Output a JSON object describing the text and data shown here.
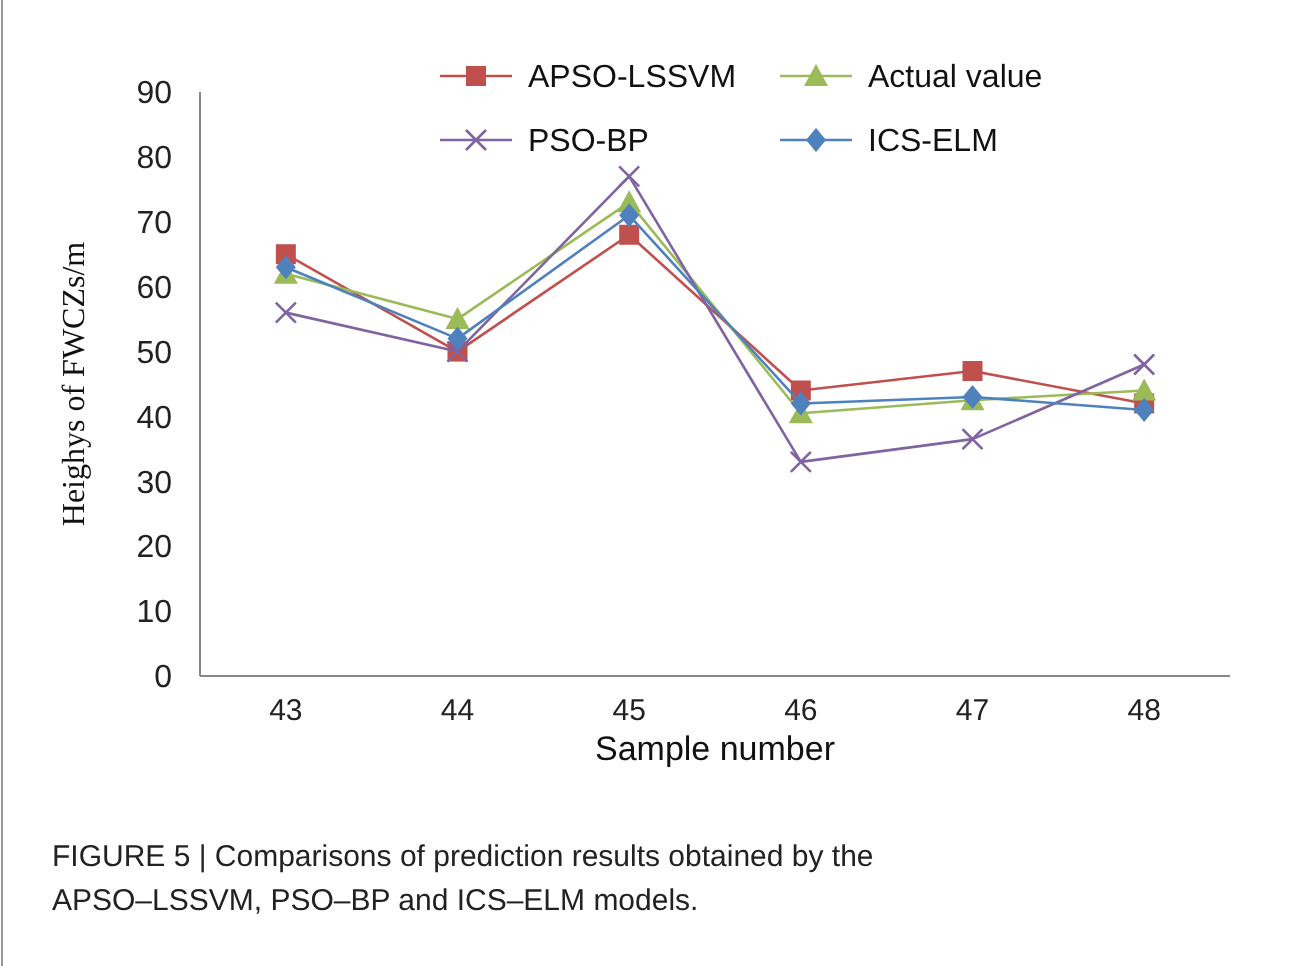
{
  "chart_data": {
    "type": "line",
    "xlabel": "Sample number",
    "ylabel": "Heighys of FWCZs/m",
    "categories": [
      "43",
      "44",
      "45",
      "46",
      "47",
      "48"
    ],
    "ylim": [
      0,
      90
    ],
    "yticks": [
      0,
      10,
      20,
      30,
      40,
      50,
      60,
      70,
      80,
      90
    ],
    "grid": false,
    "legend": "top",
    "series": [
      {
        "name": "APSO-LSSVM",
        "color": "#c0504d",
        "marker": "square",
        "values": [
          65,
          50,
          68,
          44,
          47,
          42
        ]
      },
      {
        "name": "Actual value",
        "color": "#9bbb59",
        "marker": "triangle",
        "values": [
          62,
          55,
          73,
          40.5,
          42.5,
          44
        ]
      },
      {
        "name": "PSO-BP",
        "color": "#8064a2",
        "marker": "cross",
        "values": [
          56,
          50,
          77,
          33,
          36.5,
          48
        ]
      },
      {
        "name": "ICS-ELM",
        "color": "#4f81bd",
        "marker": "diamond",
        "values": [
          63,
          52,
          71,
          42,
          43,
          41
        ]
      }
    ],
    "annotations": [
      "FIGURE 5 | Comparisons of prediction results obtained by the APSO–LSSVM, PSO–BP and ICS–ELM models."
    ]
  }
}
